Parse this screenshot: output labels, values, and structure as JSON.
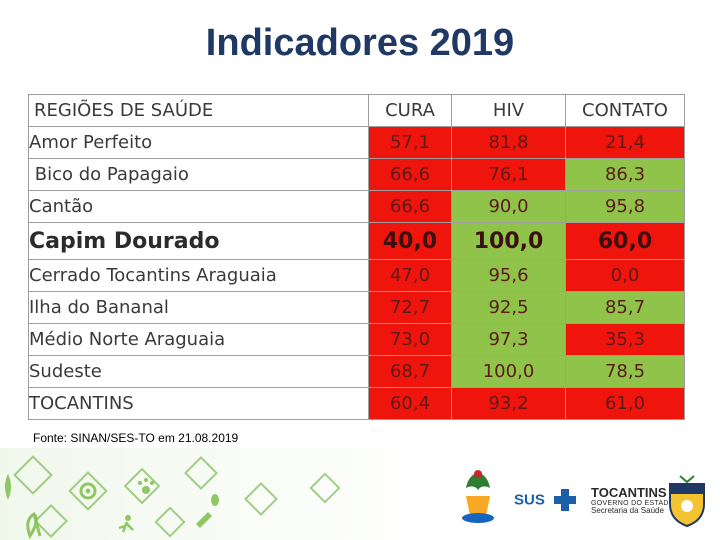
{
  "title": "Indicadores 2019",
  "table": {
    "headers": [
      "REGIÕES DE SAÚDE",
      "CURA",
      "HIV",
      "CONTATO"
    ],
    "rows": [
      {
        "region": "Amor Perfeito",
        "cura": "57,1",
        "hiv": "81,8",
        "contato": "21,4"
      },
      {
        "region": " Bico do Papagaio",
        "cura": "66,6",
        "hiv": "76,1",
        "contato": "86,3"
      },
      {
        "region": "Cantão",
        "cura": "66,6",
        "hiv": "90,0",
        "contato": "95,8"
      },
      {
        "region": "Capim Dourado",
        "cura": "40,0",
        "hiv": "100,0",
        "contato": "60,0"
      },
      {
        "region": "Cerrado Tocantins Araguaia",
        "cura": "47,0",
        "hiv": "95,6",
        "contato": "0,0"
      },
      {
        "region": "Ilha do Bananal",
        "cura": "72,7",
        "hiv": "92,5",
        "contato": "85,7"
      },
      {
        "region": "Médio Norte Araguaia",
        "cura": "73,0",
        "hiv": "97,3",
        "contato": "35,3"
      },
      {
        "region": "Sudeste",
        "cura": "68,7",
        "hiv": "100,0",
        "contato": "78,5"
      },
      {
        "region": "TOCANTINS",
        "cura": "60,4",
        "hiv": "93,2",
        "contato": "61,0"
      }
    ]
  },
  "source": "Fonte: SINAN/SES-TO em 21.08.2019",
  "logos": {
    "sus": "SUS",
    "tocantins": "TOCANTINS",
    "governo": "GOVERNO DO ESTADO",
    "secretaria": "Secretaria da Saúde"
  },
  "colors": {
    "title": "#1f3864",
    "red": "#f0150c",
    "green": "#8fc34a"
  }
}
